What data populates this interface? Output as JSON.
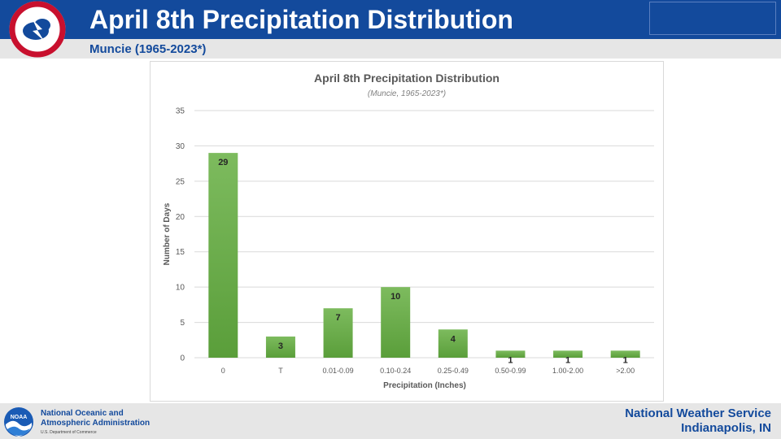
{
  "header": {
    "title": "April 8th Precipitation Distribution",
    "subtitle": "Muncie (1965-2023*)",
    "brand_color": "#134a9c",
    "logo_icon": "nws-logo-icon"
  },
  "footer": {
    "agency_name": "National Oceanic and\nAtmospheric Administration",
    "agency_dept": "U.S. Department of Commerce",
    "office_line1": "National Weather Service",
    "office_line2": "Indianapolis, IN",
    "logo_icon": "noaa-logo-icon"
  },
  "chart_data": {
    "type": "bar",
    "title": "April 8th Precipitation Distribution",
    "subtitle": "(Muncie, 1965-2023*)",
    "xlabel": "Precipitation (Inches)",
    "ylabel": "Number of Days",
    "categories": [
      "0",
      "T",
      "0.01-0.09",
      "0.10-0.24",
      "0.25-0.49",
      "0.50-0.99",
      "1.00-2.00",
      ">2.00"
    ],
    "values": [
      29,
      3,
      7,
      10,
      4,
      1,
      1,
      1
    ],
    "ylim": [
      0,
      35
    ],
    "yticks": [
      0,
      5,
      10,
      15,
      20,
      25,
      30,
      35
    ],
    "grid": true,
    "legend": "none",
    "bar_color": "#6ab04c",
    "data_labels": true
  }
}
